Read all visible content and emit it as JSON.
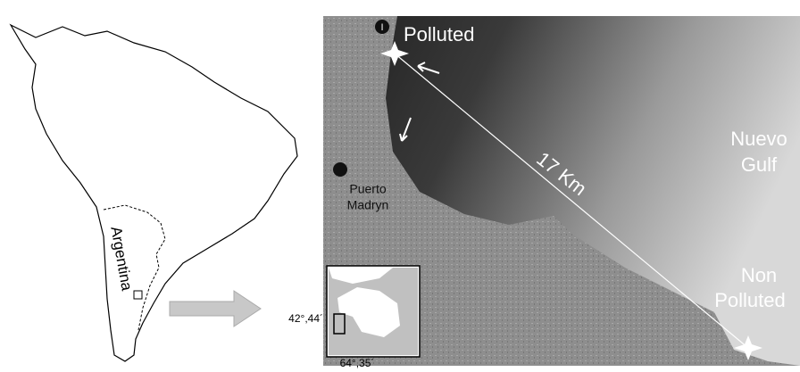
{
  "map": {
    "country_label": "Argentina",
    "city_label": [
      "Puerto",
      "Madryn"
    ],
    "gulf_label": [
      "Nuevo",
      "Gulf"
    ],
    "distance_label": "17 Km",
    "marker_label": "I",
    "sites": [
      {
        "label": [
          "Polluted"
        ]
      },
      {
        "label": [
          "Non",
          "Polluted"
        ]
      }
    ],
    "inset": {
      "latitude_label": "42°,44´",
      "longitude_label": "64°,35´"
    }
  }
}
